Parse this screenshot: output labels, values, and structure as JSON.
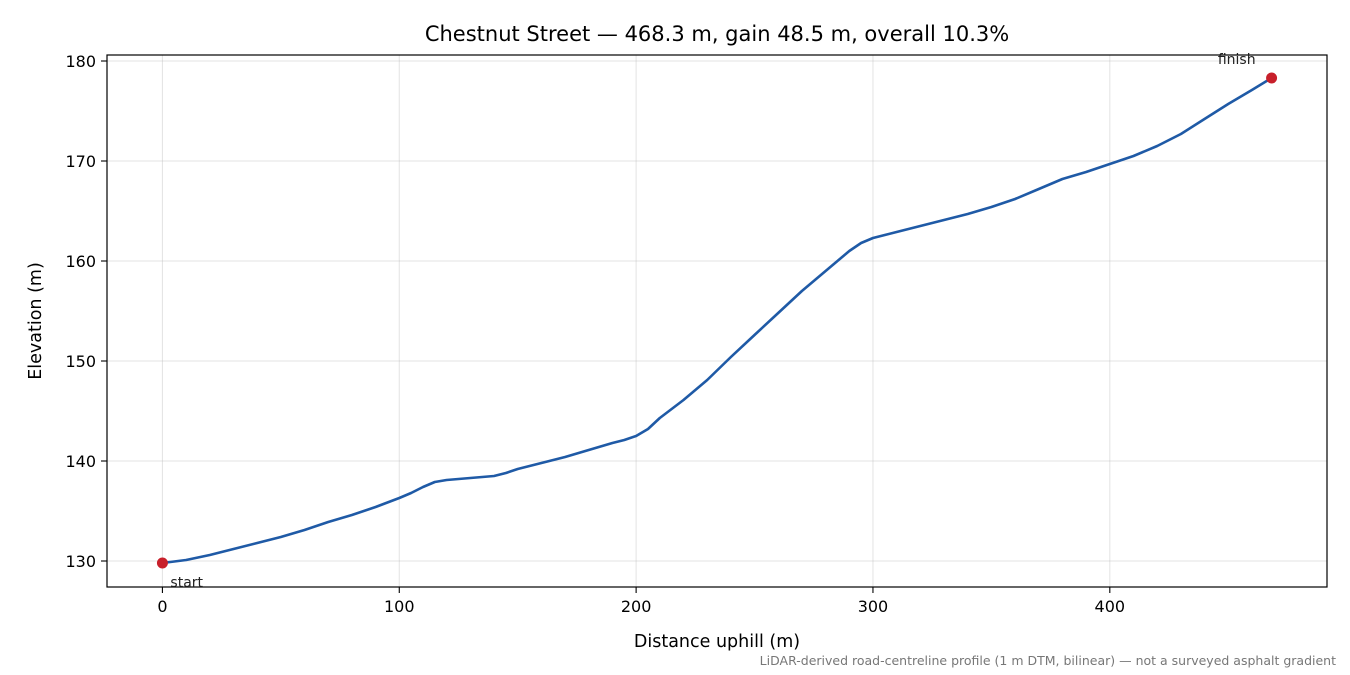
{
  "chart_data": {
    "type": "line",
    "title": "Chestnut Street — 468.3 m, gain 48.5 m, overall 10.3%",
    "xlabel": "Distance uphill (m)",
    "ylabel": "Elevation (m)",
    "xlim": [
      -23.4,
      491.7
    ],
    "ylim": [
      127.4,
      180.6
    ],
    "xticks": [
      0,
      100,
      200,
      300,
      400
    ],
    "yticks": [
      130,
      140,
      150,
      160,
      170,
      180
    ],
    "grid": true,
    "series": [
      {
        "color": "#1f5aa6",
        "x": [
          0,
          10,
          20,
          30,
          40,
          50,
          60,
          70,
          80,
          90,
          100,
          105,
          110,
          115,
          120,
          125,
          130,
          135,
          140,
          145,
          150,
          160,
          170,
          180,
          190,
          195,
          200,
          205,
          210,
          220,
          230,
          240,
          250,
          260,
          270,
          280,
          290,
          295,
          300,
          305,
          310,
          320,
          330,
          340,
          350,
          360,
          370,
          380,
          390,
          400,
          410,
          420,
          430,
          440,
          450,
          460,
          468.3
        ],
        "y": [
          129.8,
          130.1,
          130.6,
          131.2,
          131.8,
          132.4,
          133.1,
          133.9,
          134.6,
          135.4,
          136.3,
          136.8,
          137.4,
          137.9,
          138.1,
          138.2,
          138.3,
          138.4,
          138.5,
          138.8,
          139.2,
          139.8,
          140.4,
          141.1,
          141.8,
          142.1,
          142.5,
          143.2,
          144.3,
          146.1,
          148.1,
          150.4,
          152.6,
          154.8,
          157.0,
          159.0,
          161.0,
          161.8,
          162.3,
          162.6,
          162.9,
          163.5,
          164.1,
          164.7,
          165.4,
          166.2,
          167.2,
          168.2,
          168.9,
          169.7,
          170.5,
          171.5,
          172.7,
          174.2,
          175.7,
          177.1,
          178.3
        ]
      }
    ],
    "markers": [
      {
        "label": "start",
        "x": 0,
        "y": 129.8,
        "color": "#c8202b"
      },
      {
        "label": "finish",
        "x": 468.3,
        "y": 178.3,
        "color": "#c8202b"
      }
    ],
    "footnote": "LiDAR-derived road-centreline profile (1 m DTM, bilinear) — not a surveyed asphalt gradient"
  }
}
